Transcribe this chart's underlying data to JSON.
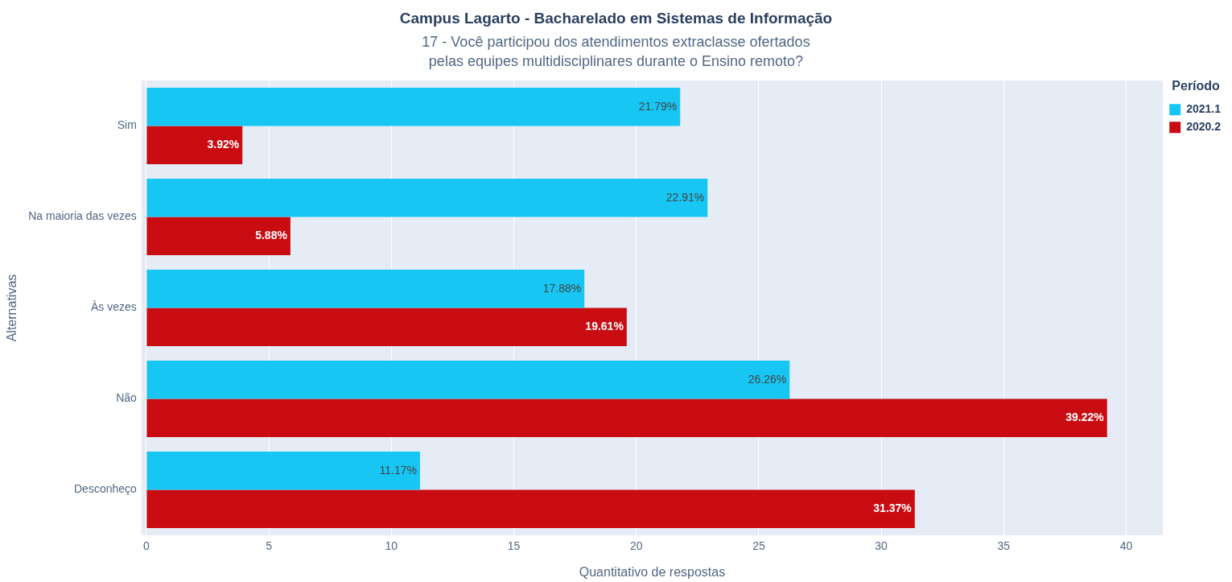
{
  "chart_data": {
    "type": "bar",
    "orientation": "horizontal",
    "title": "Campus Lagarto - Bacharelado em Sistemas de Informação",
    "subtitle": "17 - Você participou dos atendimentos extraclasse ofertados\npelas equipes multidisciplinares durante o Ensino remoto?",
    "xlabel": "Quantitativo de respostas",
    "ylabel": "Alternativas",
    "legend_title": "Período",
    "categories": [
      "Sim",
      "Na maioria das vezes",
      "Às vezes",
      "Não",
      "Desconheço"
    ],
    "series": [
      {
        "name": "2021.1",
        "color": "#17c6f3",
        "values": [
          21.79,
          22.91,
          17.88,
          26.26,
          11.17
        ],
        "value_labels": [
          "21.79%",
          "22.91%",
          "17.88%",
          "26.26%",
          "11.17%"
        ]
      },
      {
        "name": "2020.2",
        "color": "#c80c12",
        "values": [
          3.92,
          5.88,
          19.61,
          39.22,
          31.37
        ],
        "value_labels": [
          "3.92%",
          "5.88%",
          "19.61%",
          "39.22%",
          "31.37%"
        ]
      }
    ],
    "xlim": [
      -0.2,
      41.5
    ],
    "xticks": [
      0,
      5,
      10,
      15,
      20,
      25,
      30,
      35,
      40
    ],
    "grid": "x",
    "legend": "top right"
  }
}
